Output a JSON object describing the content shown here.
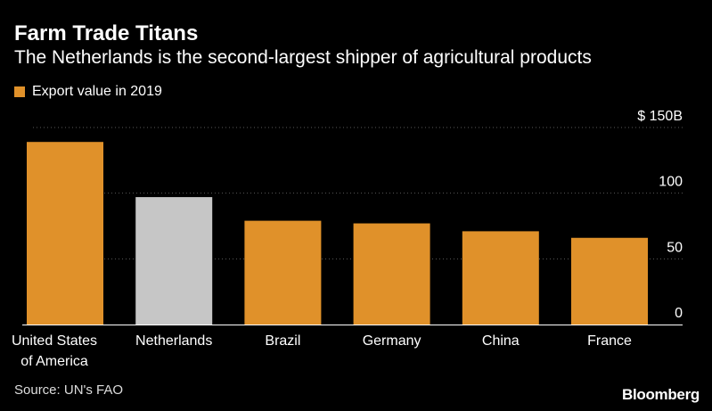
{
  "chart_data": {
    "type": "bar",
    "title": "Farm Trade Titans",
    "subtitle": "The Netherlands is the second-largest shipper of agricultural products",
    "legend": [
      {
        "label": "Export value in 2019",
        "color": "#e0912a"
      }
    ],
    "categories": [
      [
        "United States",
        "of America"
      ],
      [
        "Netherlands"
      ],
      [
        "Brazil"
      ],
      [
        "Germany"
      ],
      [
        "China"
      ],
      [
        "France"
      ]
    ],
    "values": [
      139,
      97,
      79,
      77,
      71,
      66
    ],
    "highlight_index": 1,
    "y_ticks": [
      {
        "value": 0,
        "label": "0"
      },
      {
        "value": 50,
        "label": "50"
      },
      {
        "value": 100,
        "label": "100"
      },
      {
        "value": 150,
        "label": "$ 150B"
      }
    ],
    "ylim": [
      0,
      150
    ],
    "grid": "dotted horizontal",
    "legend_position": "top-left",
    "colors": {
      "bar": "#e0912a",
      "highlight": "#c6c6c6",
      "background": "#000000",
      "text": "#ffffff",
      "grid": "#5a5a5a",
      "axis": "#ffffff"
    }
  },
  "footer": {
    "source": "Source: UN's FAO",
    "brand": "Bloomberg"
  }
}
